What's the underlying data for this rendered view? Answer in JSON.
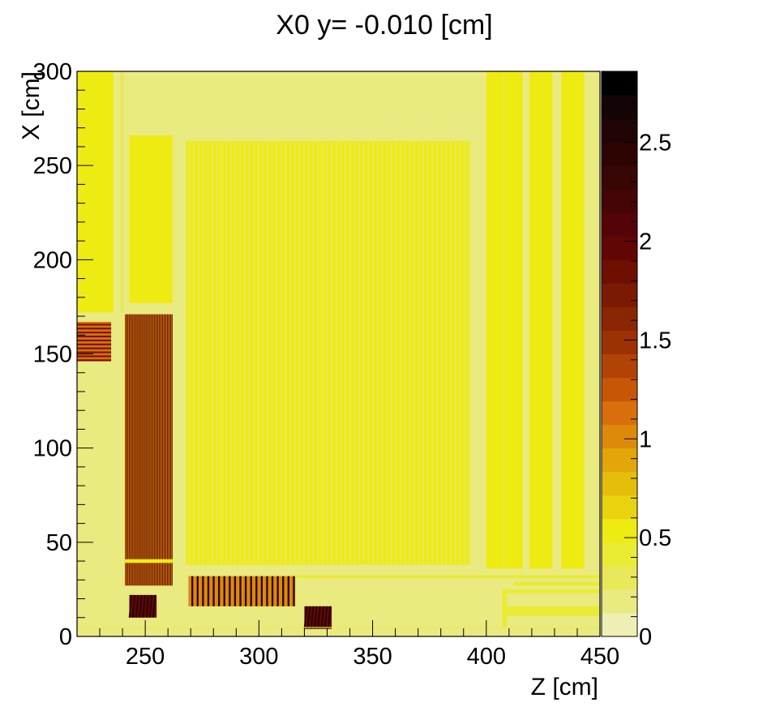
{
  "chart_data": {
    "type": "heatmap",
    "title": "X0 y= -0.010 [cm]",
    "xlabel": "Z [cm]",
    "ylabel": "X [cm]",
    "xlim": [
      220,
      450
    ],
    "ylim": [
      0,
      300
    ],
    "zlim": [
      0,
      2.86
    ],
    "x_ticks": [
      250,
      300,
      350,
      400,
      450
    ],
    "y_ticks": [
      0,
      50,
      100,
      150,
      200,
      250,
      300
    ],
    "z_ticks": [
      0,
      0.5,
      1,
      1.5,
      2,
      2.5
    ],
    "background_value": 0.15,
    "colorscale": [
      "#efeeb4",
      "#e9ea7f",
      "#e9e85b",
      "#eaeb33",
      "#eeeb13",
      "#e8d30e",
      "#e5be0b",
      "#e2a609",
      "#dd8a0b",
      "#d96f0c",
      "#c85607",
      "#b14304",
      "#9c3104",
      "#8a2604",
      "#7b1a03",
      "#6e0f02",
      "#620603",
      "#540406",
      "#450506",
      "#380605",
      "#2c0503",
      "#200406",
      "#130405",
      "#000000"
    ],
    "regions": [
      {
        "x0": 220,
        "x1": 236,
        "y0": 172,
        "y1": 300,
        "value": 0.5
      },
      {
        "x0": 239,
        "x1": 240.5,
        "y0": 172,
        "y1": 300,
        "value": 0.35
      },
      {
        "x0": 243,
        "x1": 262,
        "y0": 177,
        "y1": 266,
        "value": 0.5
      },
      {
        "x0": 220,
        "x1": 235,
        "y0": 146,
        "y1": 167,
        "value": 1.1,
        "stripes": "h",
        "stripe_value": 1.9,
        "n": 10
      },
      {
        "x0": 241,
        "x1": 262,
        "y0": 27,
        "y1": 171,
        "value": 1.1,
        "stripes": "v",
        "stripe_value": 2.3,
        "n": 30
      },
      {
        "x0": 241,
        "x1": 262,
        "y0": 39,
        "y1": 41,
        "value": 0.5
      },
      {
        "x0": 268,
        "x1": 393,
        "y0": 38,
        "y1": 263,
        "value": 0.5,
        "stripes": "v",
        "stripe_value": 0.25,
        "n": 62
      },
      {
        "x0": 269,
        "x1": 316,
        "y0": 16,
        "y1": 32,
        "value": 1.0,
        "stripes": "v",
        "stripe_value": 2.4,
        "n": 20
      },
      {
        "x0": 243,
        "x1": 255,
        "y0": 10,
        "y1": 22,
        "value": 2.0,
        "stripes": "d",
        "stripe_value": 2.7,
        "n": 8
      },
      {
        "x0": 320,
        "x1": 332,
        "y0": 4,
        "y1": 16,
        "value": 2.0,
        "stripes": "d",
        "stripe_value": 2.7,
        "n": 8
      },
      {
        "x0": 400,
        "x1": 416,
        "y0": 36,
        "y1": 300,
        "value": 0.5
      },
      {
        "x0": 407.5,
        "x1": 408,
        "y0": 36,
        "y1": 300,
        "value": 0.35
      },
      {
        "x0": 419,
        "x1": 429,
        "y0": 36,
        "y1": 300,
        "value": 0.5
      },
      {
        "x0": 433,
        "x1": 443,
        "y0": 36,
        "y1": 300,
        "value": 0.5
      },
      {
        "x0": 316,
        "x1": 450,
        "y0": 31,
        "y1": 32.5,
        "value": 0.4
      },
      {
        "x0": 412,
        "x1": 450,
        "y0": 27,
        "y1": 29,
        "value": 0.4
      },
      {
        "x0": 407,
        "x1": 450,
        "y0": 23,
        "y1": 25,
        "value": 0.4
      },
      {
        "x0": 407,
        "x1": 409,
        "y0": 5,
        "y1": 25,
        "value": 0.4
      },
      {
        "x0": 409,
        "x1": 450,
        "y0": 11,
        "y1": 16,
        "value": 0.45
      },
      {
        "x0": 220,
        "x1": 450,
        "y0": 4.5,
        "y1": 5,
        "value": 0.25
      }
    ]
  }
}
